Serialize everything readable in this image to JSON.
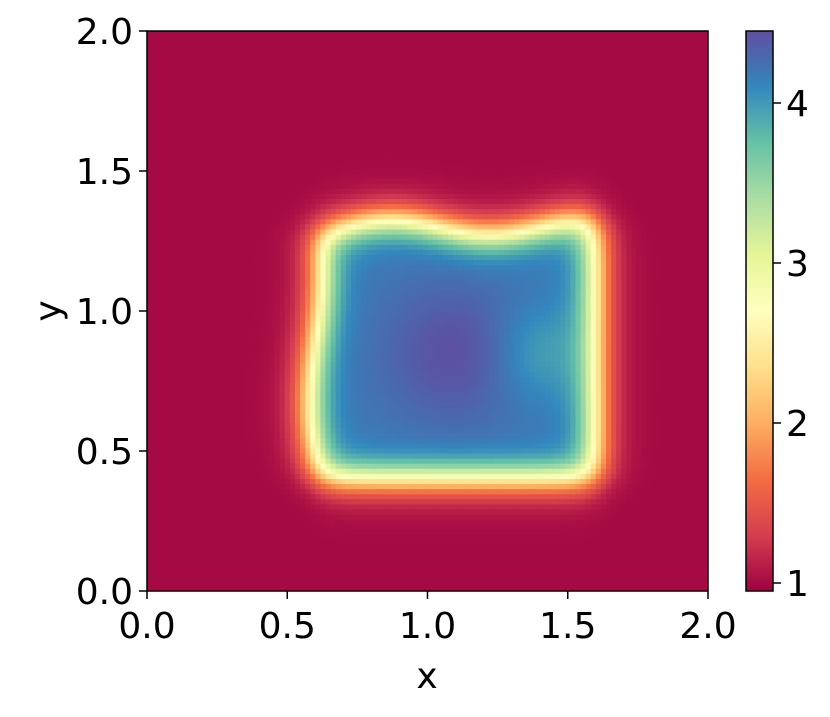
{
  "chart_data": {
    "type": "heatmap",
    "title": "",
    "xlabel": "x",
    "ylabel": "y",
    "xlim": [
      0.0,
      2.0
    ],
    "ylim": [
      0.0,
      2.0
    ],
    "x_ticks": [
      "0.0",
      "0.5",
      "1.0",
      "1.5",
      "2.0"
    ],
    "y_ticks": [
      "0.0",
      "0.5",
      "1.0",
      "1.5",
      "2.0"
    ],
    "grid": false,
    "colormap": "Spectral",
    "colorbar": {
      "range": [
        0.95,
        4.45
      ],
      "ticks": [
        "1",
        "2",
        "3",
        "4"
      ],
      "stops": [
        {
          "v": 0.0,
          "color": "#9e0142"
        },
        {
          "v": 0.1,
          "color": "#d53e4f"
        },
        {
          "v": 0.2,
          "color": "#f46d43"
        },
        {
          "v": 0.3,
          "color": "#fdae61"
        },
        {
          "v": 0.4,
          "color": "#fee08b"
        },
        {
          "v": 0.5,
          "color": "#ffffbf"
        },
        {
          "v": 0.6,
          "color": "#e6f598"
        },
        {
          "v": 0.7,
          "color": "#abdda4"
        },
        {
          "v": 0.8,
          "color": "#66c2a5"
        },
        {
          "v": 0.9,
          "color": "#3288bd"
        },
        {
          "v": 1.0,
          "color": "#5e4fa2"
        }
      ]
    },
    "field": {
      "background_value": 1.0,
      "region": {
        "x": [
          0.6,
          1.6
        ],
        "y": [
          0.4,
          1.3
        ]
      },
      "interior_value": 4.2,
      "peak": {
        "x": 1.1,
        "y": 0.85,
        "value": 4.45
      }
    }
  }
}
